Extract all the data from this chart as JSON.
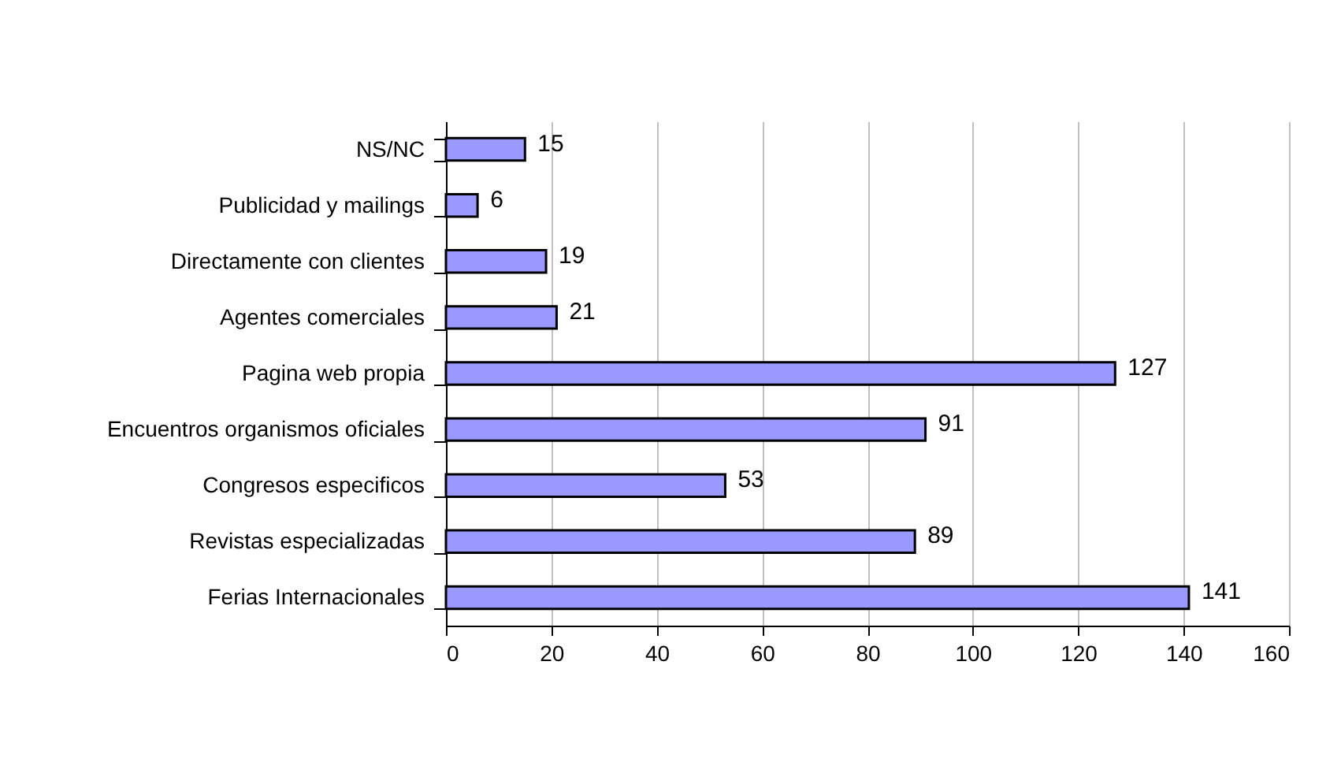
{
  "chart_data": {
    "type": "bar",
    "orientation": "horizontal",
    "categories": [
      "NS/NC",
      "Publicidad y mailings",
      "Directamente con clientes",
      "Agentes comerciales",
      "Pagina web propia",
      "Encuentros organismos oficiales",
      "Congresos especificos",
      "Revistas especializadas",
      "Ferias Internacionales"
    ],
    "values": [
      15,
      6,
      19,
      21,
      127,
      91,
      53,
      89,
      141
    ],
    "color": "#9999ff",
    "xlim": [
      0,
      160
    ],
    "xticks": [
      0,
      20,
      40,
      60,
      80,
      100,
      120,
      140,
      160
    ],
    "grid": "x",
    "data_labels": true
  }
}
